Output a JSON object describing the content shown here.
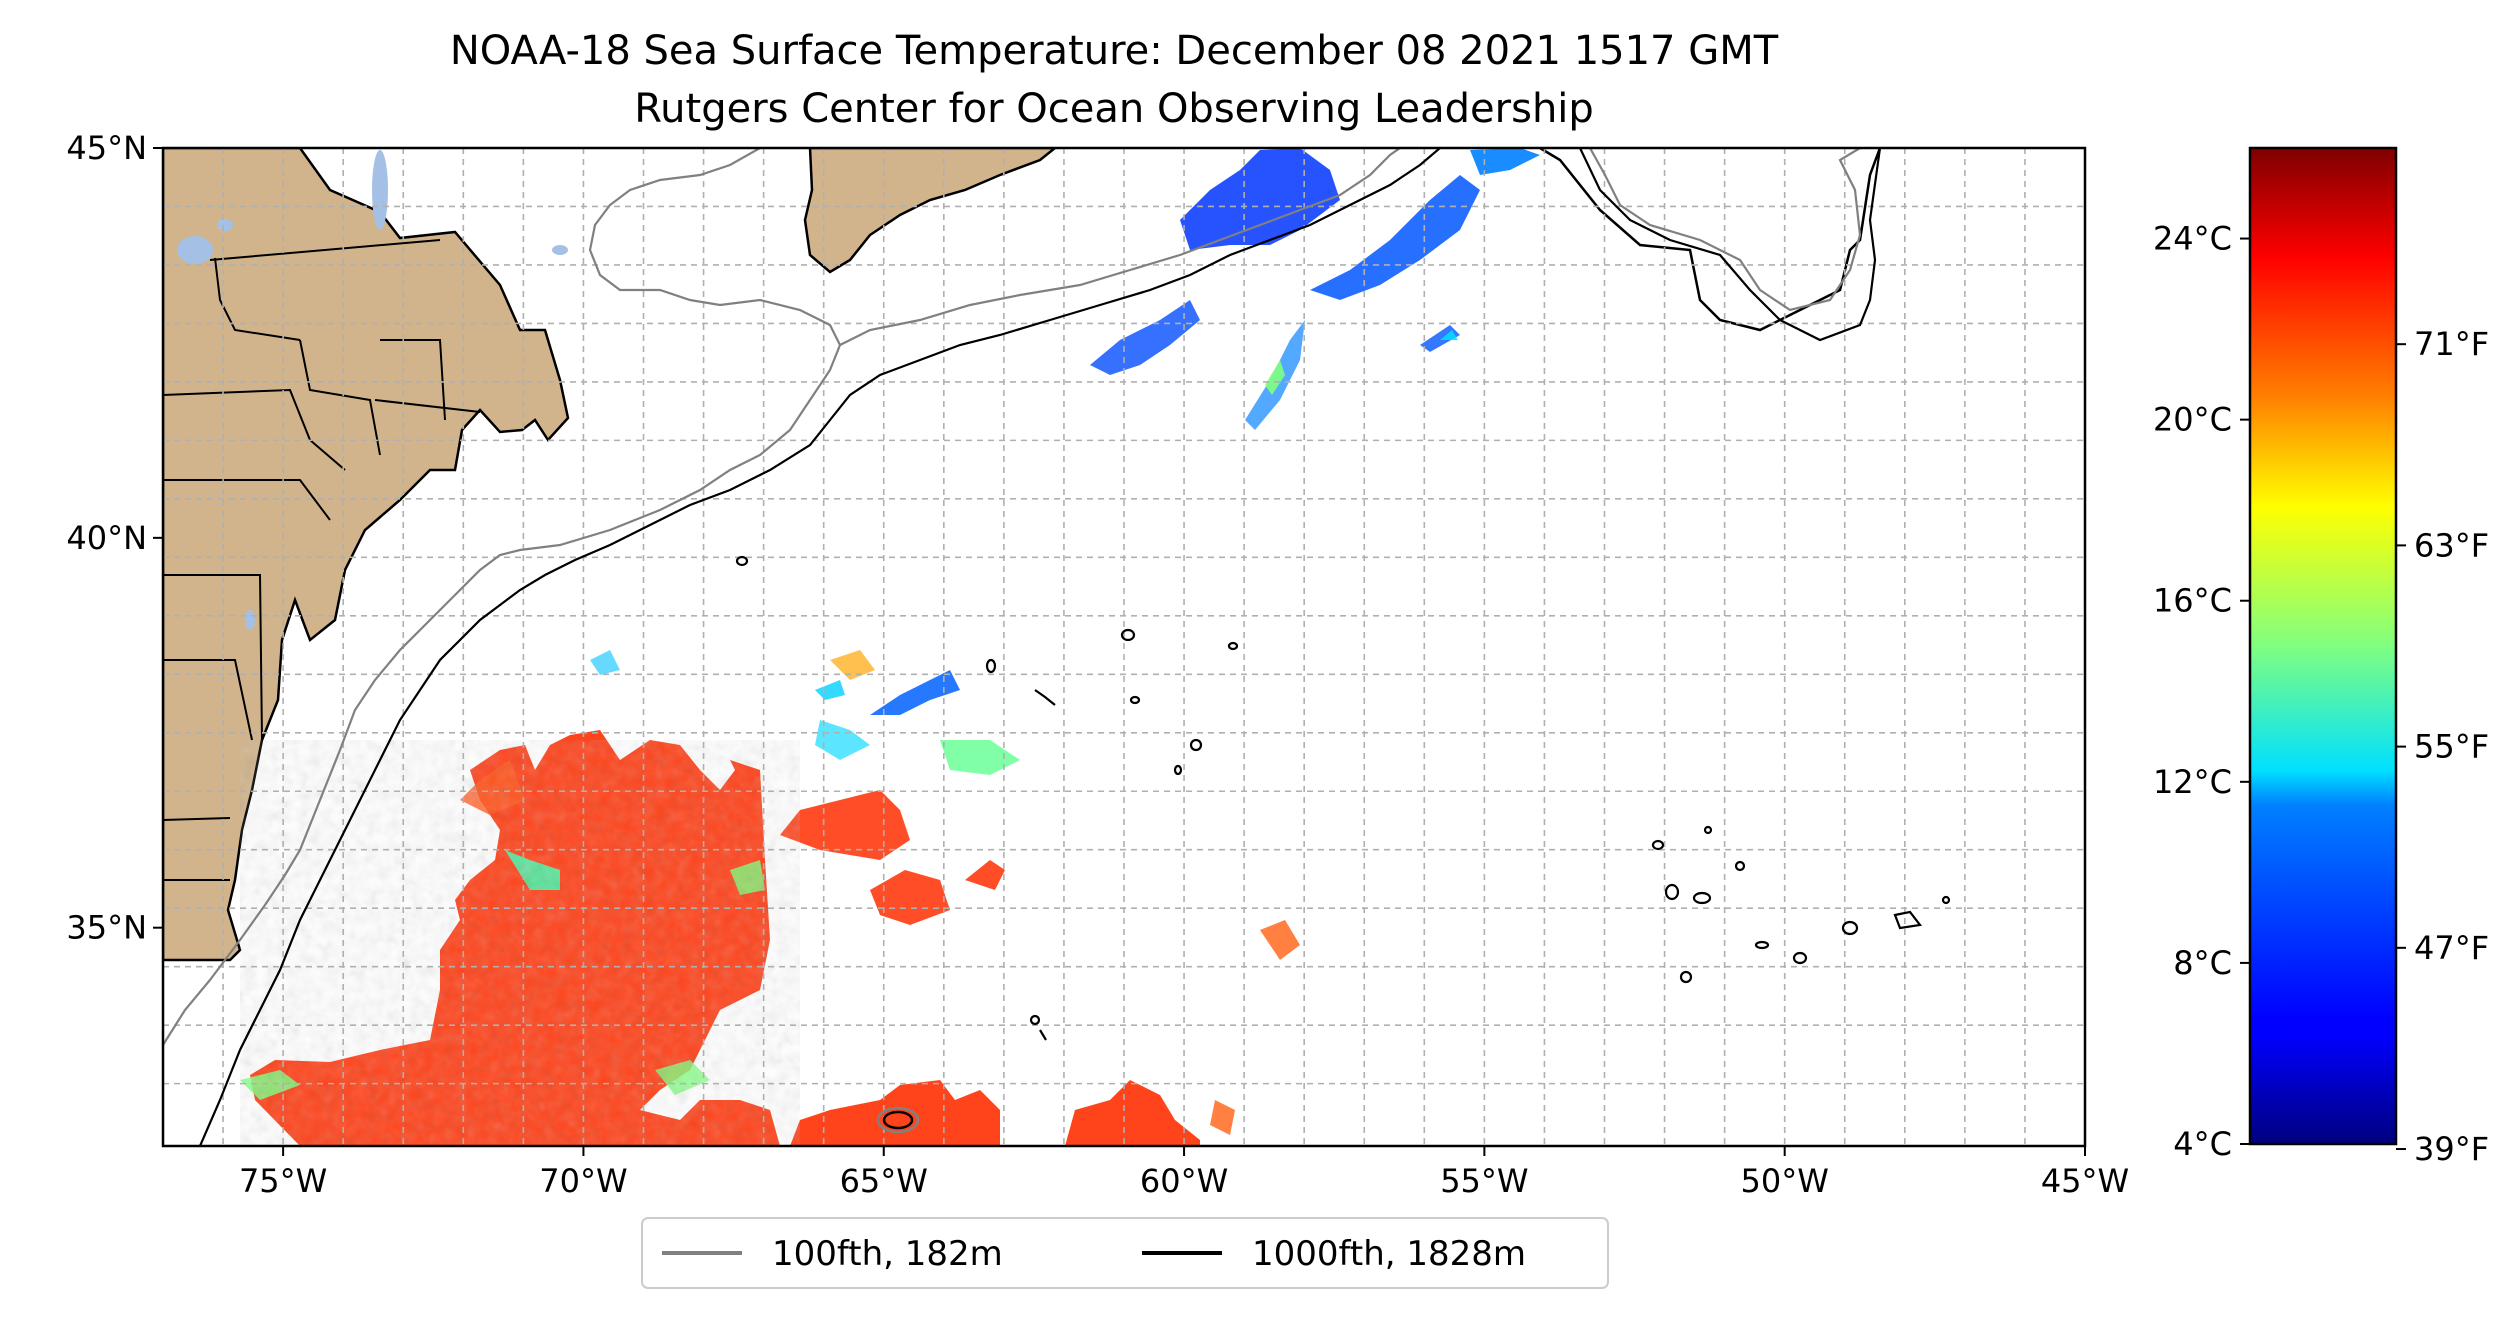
{
  "title": "NOAA-18 Sea Surface Temperature: December 08 2021 1517 GMT",
  "subtitle": "Rutgers Center for Ocean Observing Leadership",
  "map": {
    "lon_range": [
      -77,
      -45
    ],
    "lat_range": [
      32.2,
      45
    ],
    "x_ticks": [
      {
        "lon": -75,
        "label": "75°W"
      },
      {
        "lon": -70,
        "label": "70°W"
      },
      {
        "lon": -65,
        "label": "65°W"
      },
      {
        "lon": -60,
        "label": "60°W"
      },
      {
        "lon": -55,
        "label": "55°W"
      },
      {
        "lon": -50,
        "label": "50°W"
      },
      {
        "lon": -45,
        "label": "45°W"
      }
    ],
    "y_ticks": [
      {
        "lat": 35,
        "label": "35°N"
      },
      {
        "lat": 40,
        "label": "40°N"
      },
      {
        "lat": 45,
        "label": "45°N"
      }
    ],
    "grid_step_deg": 1,
    "gridlines": true,
    "colors": {
      "land": "#d2b48c",
      "lakes": "#a4c0e4",
      "coastline": "#000000",
      "isobath_100fth": "#808080",
      "isobath_1000fth": "#000000"
    }
  },
  "legend": {
    "items": [
      {
        "label": "100fth, 182m",
        "color": "#808080"
      },
      {
        "label": "1000fth, 1828m",
        "color": "#000000"
      }
    ]
  },
  "colorbar": {
    "colormap": "jet",
    "range_c": [
      4,
      26
    ],
    "celsius_ticks": [
      {
        "value": 4,
        "label": "4°C"
      },
      {
        "value": 8,
        "label": "8°C"
      },
      {
        "value": 12,
        "label": "12°C"
      },
      {
        "value": 16,
        "label": "16°C"
      },
      {
        "value": 20,
        "label": "20°C"
      },
      {
        "value": 24,
        "label": "24°C"
      }
    ],
    "fahrenheit_ticks": [
      {
        "value": 39,
        "label": "39°F"
      },
      {
        "value": 47,
        "label": "47°F"
      },
      {
        "value": 55,
        "label": "55°F"
      },
      {
        "value": 63,
        "label": "63°F"
      },
      {
        "value": 71,
        "label": "71°F"
      }
    ]
  }
}
